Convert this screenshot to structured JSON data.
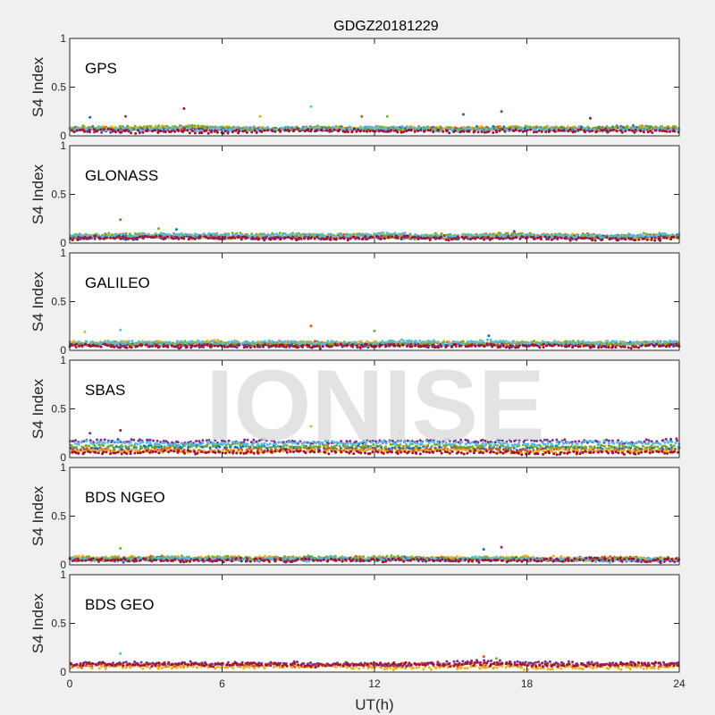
{
  "chart_data": {
    "type": "scatter",
    "title": "GDGZ20181229",
    "xlabel": "UT(h)",
    "ylabel": "S4 Index",
    "xlim": [
      0,
      24
    ],
    "ylim": [
      0,
      1
    ],
    "xticks": [
      "0",
      "6",
      "12",
      "18",
      "24"
    ],
    "yticks": [
      "0",
      "0.5",
      "1"
    ],
    "watermark": "IONISE",
    "colors": [
      "#0072BD",
      "#D95319",
      "#EDB120",
      "#7E2F8E",
      "#77AC30",
      "#4DBEEE",
      "#A2142F"
    ],
    "panels": [
      {
        "name": "GPS",
        "series_levels": [
          0.08,
          0.07,
          0.08,
          0.06,
          0.08,
          0.07,
          0.05
        ],
        "outliers": [
          [
            0.8,
            0.19
          ],
          [
            2.2,
            0.2
          ],
          [
            4.5,
            0.28
          ],
          [
            7.5,
            0.2
          ],
          [
            9.5,
            0.3
          ],
          [
            11.5,
            0.2
          ],
          [
            12.5,
            0.2
          ],
          [
            15.5,
            0.22
          ],
          [
            17,
            0.25
          ],
          [
            20.5,
            0.18
          ]
        ]
      },
      {
        "name": "GLONASS",
        "series_levels": [
          0.06,
          0.07,
          0.07,
          0.06,
          0.08,
          0.08,
          0.05
        ],
        "outliers": [
          [
            2,
            0.24
          ],
          [
            3.5,
            0.15
          ],
          [
            4.2,
            0.14
          ],
          [
            17.5,
            0.12
          ]
        ]
      },
      {
        "name": "GALILEO",
        "series_levels": [
          0.06,
          0.07,
          0.08,
          0.05,
          0.07,
          0.08,
          0.05
        ],
        "outliers": [
          [
            0.6,
            0.19
          ],
          [
            2,
            0.21
          ],
          [
            9.5,
            0.25
          ],
          [
            12,
            0.2
          ],
          [
            16.5,
            0.15
          ]
        ]
      },
      {
        "name": "SBAS",
        "series_levels": [
          0.1,
          0.08,
          0.07,
          0.17,
          0.12,
          0.15,
          0.05
        ],
        "outliers": [
          [
            0.8,
            0.25
          ],
          [
            2,
            0.28
          ],
          [
            9.5,
            0.32
          ],
          [
            13,
            0.25
          ]
        ]
      },
      {
        "name": "BDS NGEO",
        "series_levels": [
          0.06,
          0.06,
          0.07,
          0.05,
          0.07,
          0.06,
          0.05
        ],
        "outliers": [
          [
            2,
            0.17
          ],
          [
            16.3,
            0.16
          ],
          [
            17,
            0.18
          ]
        ]
      },
      {
        "name": "BDS GEO",
        "series_levels": [
          null,
          0.07,
          0.05,
          0.09,
          null,
          null,
          0.08
        ],
        "outliers": [
          [
            2,
            0.19
          ],
          [
            16.3,
            0.16
          ],
          [
            16.8,
            0.14
          ]
        ]
      }
    ]
  }
}
